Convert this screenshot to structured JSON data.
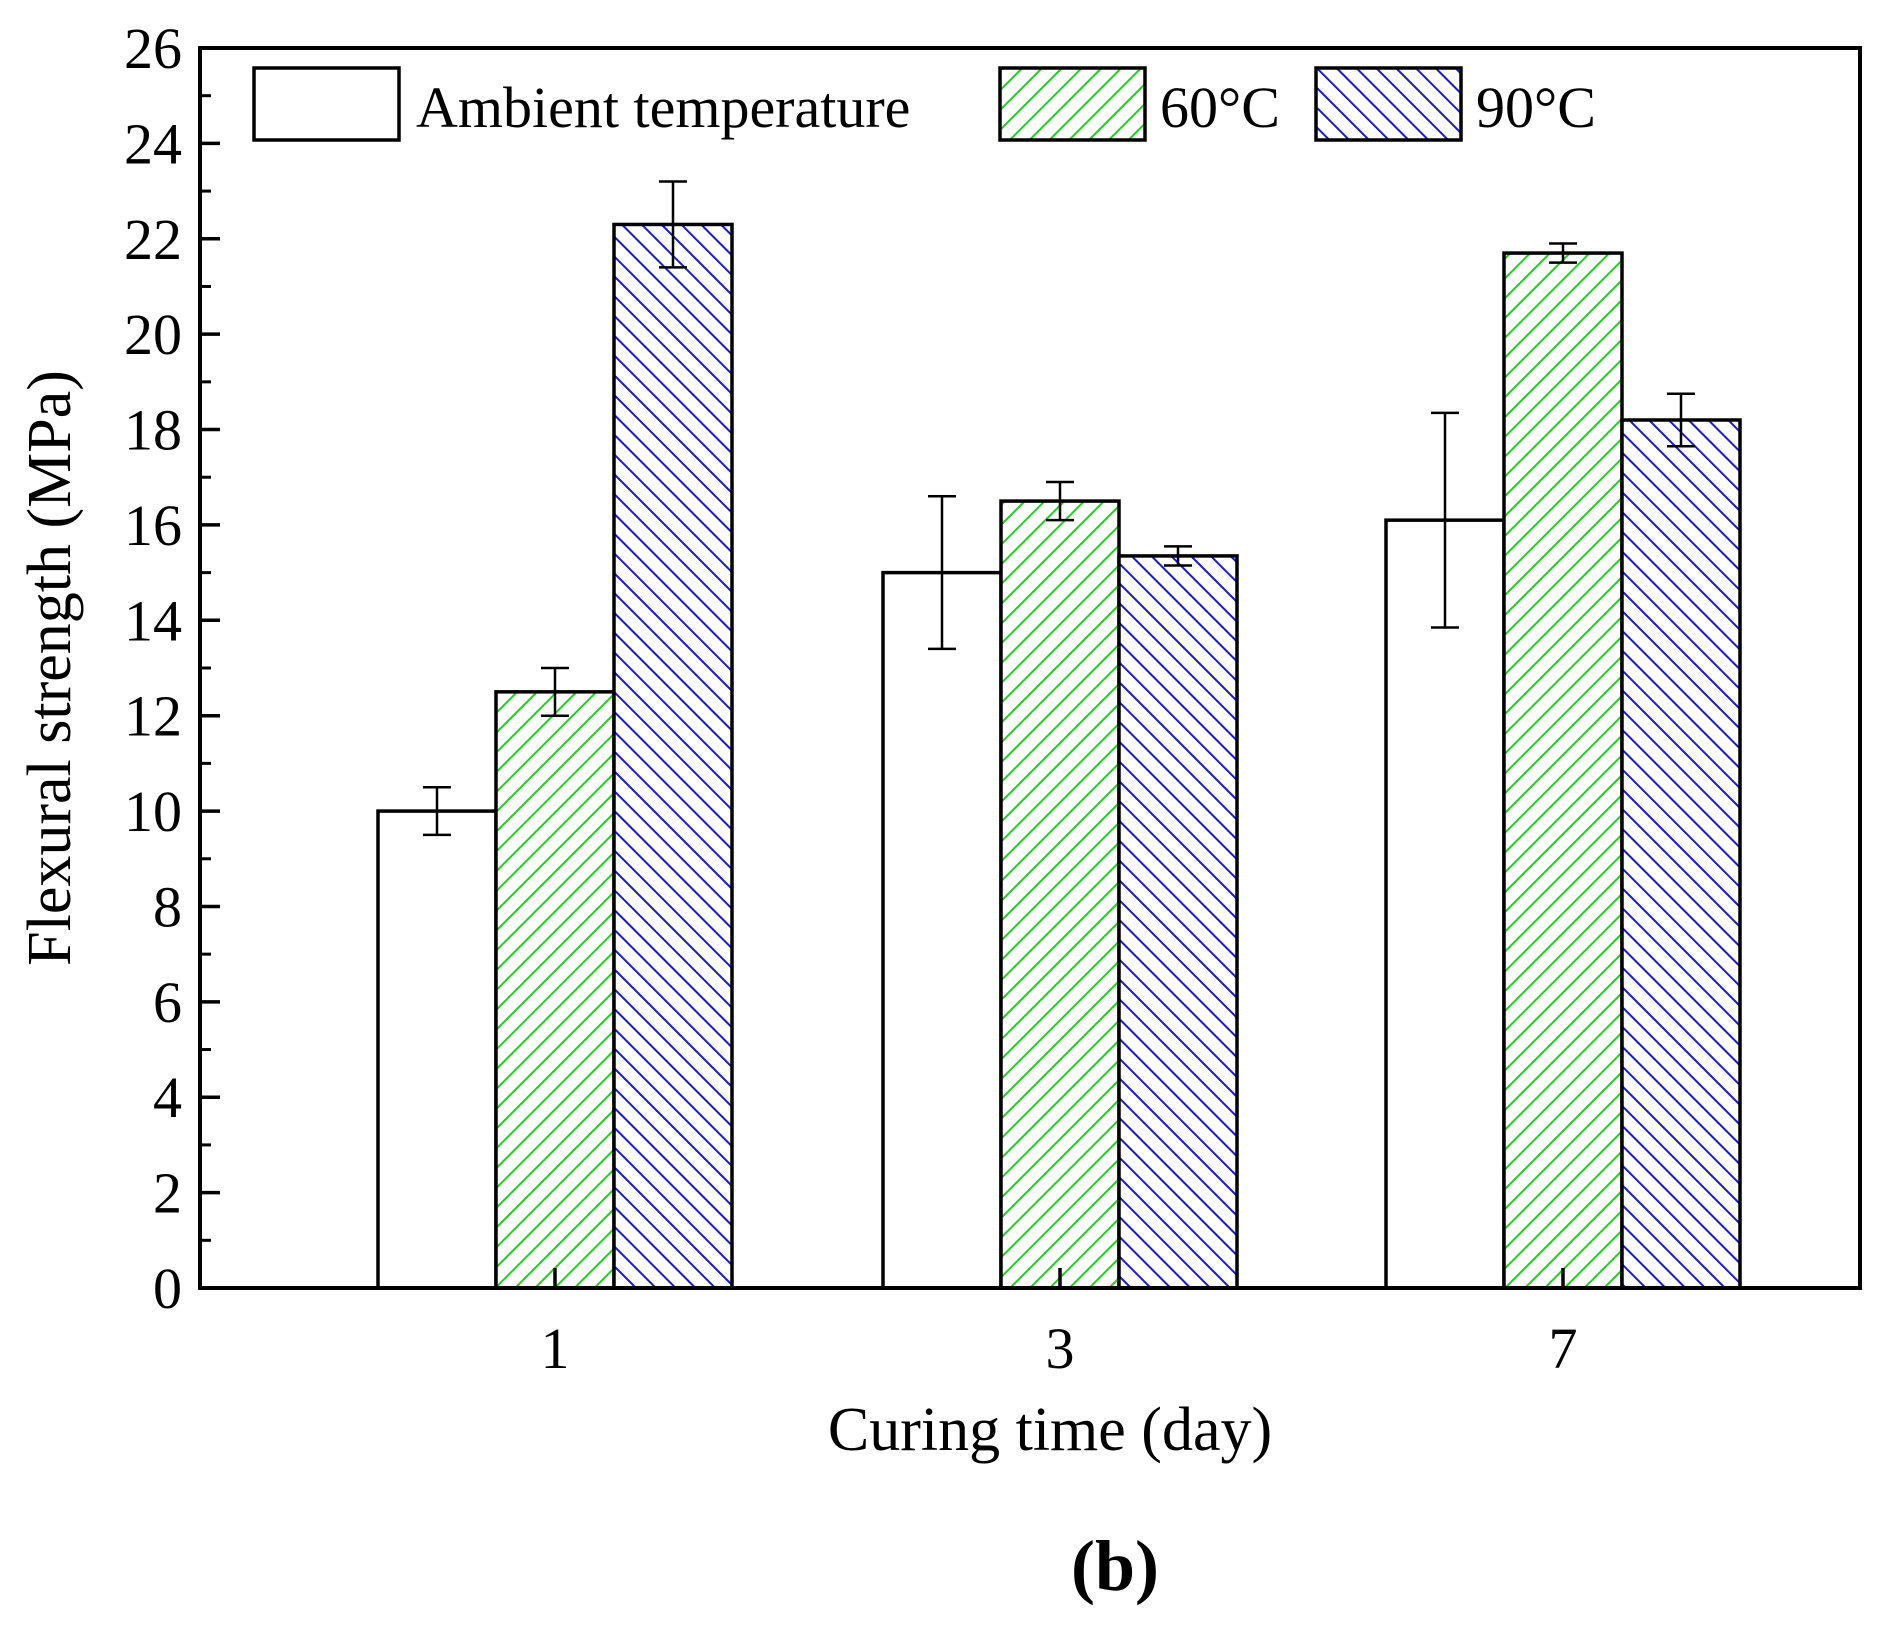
{
  "chart_data": {
    "type": "bar",
    "title": "",
    "xlabel": "Curing time (day)",
    "ylabel": "Flexural strength (MPa)",
    "categories": [
      "1",
      "3",
      "7"
    ],
    "ylim": [
      0,
      26
    ],
    "yticks": [
      "0",
      "2",
      "4",
      "6",
      "8",
      "10",
      "12",
      "14",
      "16",
      "18",
      "20",
      "22",
      "24",
      "26"
    ],
    "series": [
      {
        "name": "Ambient temperature",
        "values": [
          10.0,
          15.0,
          16.1
        ],
        "errors": [
          0.5,
          1.6,
          2.25
        ],
        "fill": "#ffffff",
        "pattern": "none",
        "stroke": "#000000"
      },
      {
        "name": "60°C",
        "values": [
          12.5,
          16.5,
          21.7
        ],
        "errors": [
          0.5,
          0.4,
          0.2
        ],
        "fill": "#ffffff",
        "pattern": "forward-hatch",
        "stroke": "#26d926"
      },
      {
        "name": "90°C",
        "values": [
          22.3,
          15.35,
          18.2
        ],
        "errors": [
          0.9,
          0.2,
          0.55
        ],
        "fill": "#ffffff",
        "pattern": "back-hatch",
        "stroke": "#1a1ad4"
      }
    ],
    "legend_position": "top-left",
    "panel_label": "(b)"
  }
}
